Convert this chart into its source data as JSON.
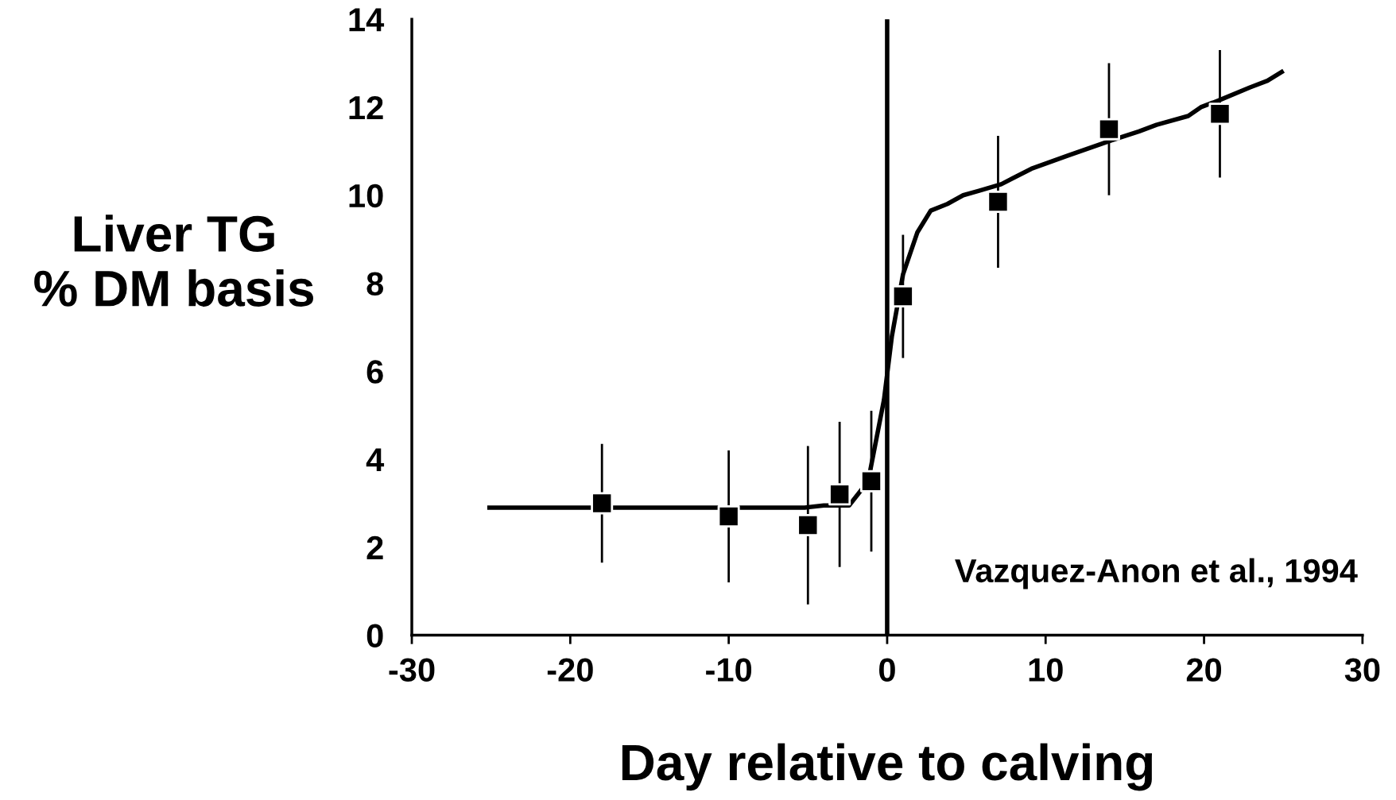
{
  "chart_data": {
    "type": "scatter",
    "xlabel": "Day relative to calving",
    "ylabel": "Liver TG\n% DM basis",
    "xlim": [
      -30,
      30
    ],
    "xticks": [
      -30,
      -20,
      -10,
      0,
      10,
      20,
      30
    ],
    "ylim": [
      0,
      14
    ],
    "yticks": [
      0,
      2,
      4,
      6,
      8,
      10,
      12,
      14
    ],
    "grid": false,
    "legend": false,
    "series": [
      {
        "type": "line",
        "color": "#000000",
        "marker": "none",
        "line_style": "solid",
        "x": [
          -25.1,
          -5.2,
          -4,
          -2.4,
          -1.2,
          -0.2,
          0.3,
          1.0,
          1.9,
          2.75,
          3.8,
          4.8,
          5.8,
          7.2,
          9.1,
          11.4,
          14.2,
          15.9,
          17,
          19,
          19.8,
          20.9,
          22.9,
          24,
          24.9
        ],
        "values": [
          2.9,
          2.9,
          2.95,
          2.95,
          3.5,
          5.35,
          6.8,
          8.2,
          9.15,
          9.65,
          9.8,
          10.0,
          10.1,
          10.25,
          10.6,
          10.9,
          11.25,
          11.45,
          11.6,
          11.8,
          12.0,
          12.15,
          12.45,
          12.6,
          12.8
        ]
      },
      {
        "color": "#000000",
        "marker": "square",
        "x": [
          -18,
          -10,
          -5,
          -3,
          -1,
          1,
          7,
          14,
          21
        ],
        "values": [
          3.0,
          2.7,
          2.5,
          3.2,
          3.5,
          7.7,
          9.85,
          11.5,
          11.85
        ],
        "errors": [
          1.35,
          1.5,
          1.8,
          1.65,
          1.6,
          1.4,
          1.5,
          1.5,
          1.45
        ]
      }
    ],
    "ref_lines": [
      {
        "axis": "x",
        "value": 0,
        "color": "#000000",
        "line_style": "solid"
      }
    ],
    "annotations": [
      "Vazquez-Anon et al., 1994"
    ]
  }
}
